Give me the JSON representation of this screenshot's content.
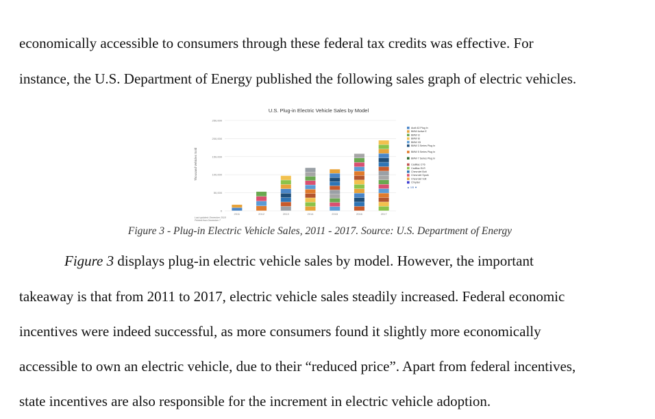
{
  "paragraph_top": {
    "lines": [
      "economically accessible to consumers through these federal tax credits was effective. For",
      "instance, the U.S. Department of Energy published the following sales graph of electric vehicles."
    ]
  },
  "figure": {
    "caption": "Figure 3 - Plug-in Electric Vehicle Sales, 2011 - 2017. Source: U.S. Department of Energy"
  },
  "paragraph_bottom": {
    "first_line_ref": "Figure 3",
    "first_line_rest": " displays plug-in electric vehicle sales by model. However, the important",
    "lines": [
      "takeaway is that from 2011 to 2017, electric vehicle sales steadily increased. Federal economic",
      "incentives were indeed successful, as more consumers found it slightly more economically",
      "accessible to own an electric vehicle, due to their “reduced price”. Apart from federal incentives,",
      "state incentives are also responsible for the increment in electric vehicle adoption."
    ]
  },
  "chart_data": {
    "type": "bar",
    "stacked": true,
    "title": "U.S. Plug-in Electric Vehicle Sales by Model",
    "ylabel": "Thousand Vehicles Sold",
    "xlabel": "",
    "categories": [
      "2011",
      "2012",
      "2013",
      "2014",
      "2015",
      "2016",
      "2017"
    ],
    "yticks": [
      "0",
      "50,000",
      "100,000",
      "150,000",
      "200,000",
      "250,000"
    ],
    "ylim": [
      0,
      250000
    ],
    "totals": [
      17000,
      53000,
      97000,
      119000,
      115000,
      158000,
      195000
    ],
    "segment_colors": [
      "#4a86c8",
      "#e07b2c",
      "#9aa0a6",
      "#e8a33a",
      "#5b9bd5",
      "#c85a2a",
      "#8bc34a",
      "#d94f70",
      "#2e75b6",
      "#f2c14e",
      "#6aa84f",
      "#1f4e79",
      "#b4552d",
      "#a6a6a6"
    ],
    "legend": {
      "placement": "right",
      "entries": [
        {
          "label": "Audi A3 Plug In",
          "color": "#4a86c8"
        },
        {
          "label": "BMW Active E",
          "color": "#e8a33a"
        },
        {
          "label": "BMW i3",
          "color": "#6aa84f"
        },
        {
          "label": "BMW i8",
          "color": "#f2c14e"
        },
        {
          "label": "BMW X5",
          "color": "#5b9bd5"
        },
        {
          "label": "BMW 3 Series Plug In",
          "color": "#1f4e79"
        },
        {
          "label": "BMW 5 Series Plug In",
          "color": "#e07b2c"
        },
        {
          "label": "BMW 7 Series Plug In",
          "color": "#2e6b2e"
        },
        {
          "label": "Cadillac CT6",
          "color": "#c0504d"
        },
        {
          "label": "Cadillac ELR",
          "color": "#8bc34a"
        },
        {
          "label": "Chevrolet Bolt",
          "color": "#2e75b6"
        },
        {
          "label": "Chevrolet Spark",
          "color": "#d94f70"
        },
        {
          "label": "Chevrolet Volt",
          "color": "#e8a33a"
        },
        {
          "label": "Chrysler",
          "color": "#3b3bd0"
        }
      ],
      "pager": "1/5"
    },
    "footnote": [
      "Last updated: December 2018",
      "Printed from December 7"
    ]
  }
}
